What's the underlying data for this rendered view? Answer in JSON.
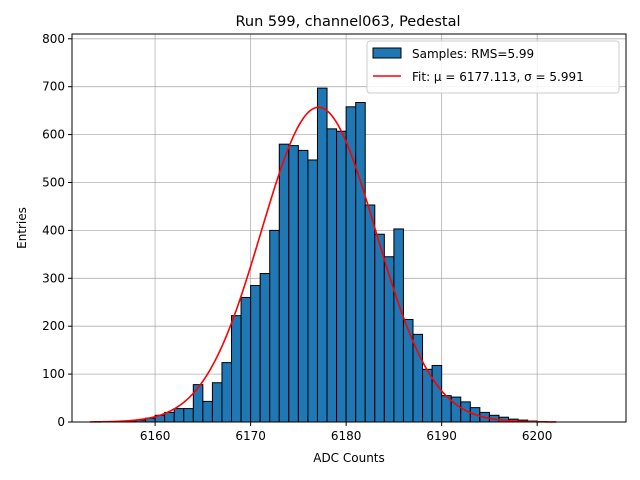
{
  "chart_data": {
    "type": "bar",
    "title": "Run 599, channel063, Pedestal",
    "xlabel": "ADC Counts",
    "ylabel": "Entries",
    "xlim": [
      6151.3,
      6209.3
    ],
    "ylim": [
      0,
      810
    ],
    "xticks": [
      6160,
      6170,
      6180,
      6190,
      6200
    ],
    "yticks": [
      0,
      100,
      200,
      300,
      400,
      500,
      600,
      700,
      800
    ],
    "grid": true,
    "legend_position": "top-right",
    "legend": [
      {
        "kind": "patch",
        "label": "Samples: RMS=5.99",
        "color": "#1f77b4"
      },
      {
        "kind": "line",
        "label": "Fit: μ = 6177.113, σ = 5.991",
        "color": "#ff0000"
      }
    ],
    "histogram": {
      "name": "Samples",
      "bin_width": 1,
      "bin_start": 6153,
      "values": [
        0,
        0,
        0,
        1,
        2,
        4,
        8,
        14,
        20,
        28,
        28,
        78,
        43,
        82,
        124,
        222,
        260,
        285,
        310,
        400,
        580,
        577,
        567,
        547,
        697,
        612,
        607,
        658,
        667,
        453,
        392,
        345,
        403,
        214,
        183,
        110,
        118,
        55,
        52,
        42,
        30,
        20,
        14,
        10,
        6,
        4,
        2,
        1,
        0,
        0,
        0,
        0,
        0,
        0
      ],
      "color": "#1f77b4",
      "edgecolor": "#000000"
    },
    "fit": {
      "name": "Fit",
      "mu": 6177.113,
      "sigma": 5.991,
      "amplitude": 657,
      "x_range": [
        6153.2,
        6202
      ],
      "color": "#ff0000"
    }
  }
}
